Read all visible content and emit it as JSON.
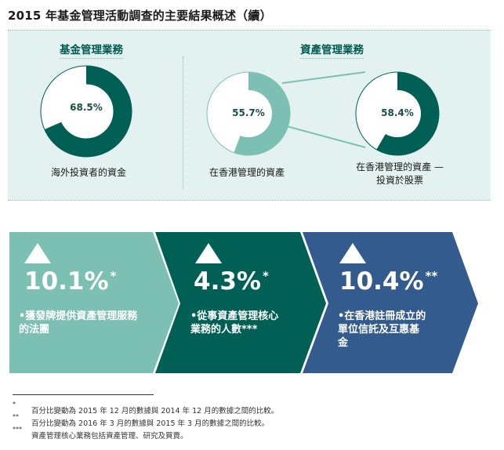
{
  "title": "2015 年基金管理活動調查的主要結果概述（續）",
  "left_panel": {
    "heading": "基金管理業務",
    "donut": {
      "percent": 68.5,
      "label": "68.5%",
      "caption": "海外投資者的資金"
    }
  },
  "right_panel": {
    "heading": "資產管理業務",
    "donut1": {
      "percent": 55.7,
      "label": "55.7%",
      "caption": "在香港管理的資產"
    },
    "donut2": {
      "percent": 58.4,
      "label": "58.4%",
      "caption_line1": "在香港管理的資產 —",
      "caption_line2": "投資於股票"
    }
  },
  "stats": [
    {
      "value": "10.1%",
      "mark": "*",
      "desc_line1": "•獲發牌提供資產管理服務",
      "desc_line2": "的法團",
      "color": "#7cc0b4"
    },
    {
      "value": "4.3%",
      "mark": "*",
      "desc_line1": "•從事資產管理核心",
      "desc_line2": "業務的人數***",
      "color": "#006055"
    },
    {
      "value": "10.4%",
      "mark": "**",
      "desc_line1": "•在香港註冊成立的",
      "desc_line2": "單位信託及互惠基",
      "desc_line3": "金",
      "color": "#345b8e"
    }
  ],
  "colors": {
    "dark_teal": "#006055",
    "light_teal": "#7cc0b4",
    "blue": "#345b8e",
    "panel_bg": "#e3f1f0"
  },
  "footnotes": [
    {
      "mark": "*",
      "text": "百分比變動為 2015 年 12 月的數據與 2014 年 12 月的數據之間的比較。"
    },
    {
      "mark": "**",
      "text": "百分比變動為 2016 年 3 月的數據與 2015 年 3 月的數據之間的比較。"
    },
    {
      "mark": "***",
      "text": "資產管理核心業務包括資產管理、研究及買賣。"
    }
  ]
}
